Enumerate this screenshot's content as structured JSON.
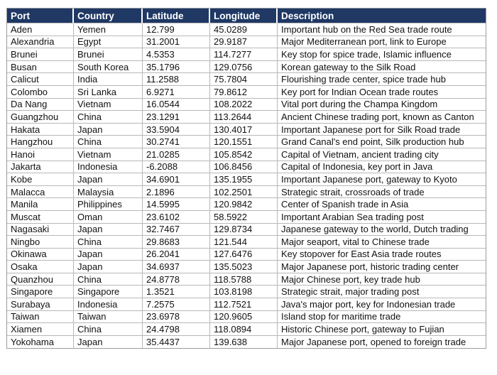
{
  "chart_data": {
    "type": "table",
    "columns": [
      "Port",
      "Country",
      "Latitude",
      "Longitude",
      "Description"
    ],
    "rows": [
      [
        "Aden",
        "Yemen",
        "12.799",
        "45.0289",
        "Important hub on the Red Sea trade route"
      ],
      [
        "Alexandria",
        "Egypt",
        "31.2001",
        "29.9187",
        "Major Mediterranean port, link to Europe"
      ],
      [
        "Brunei",
        "Brunei",
        "4.5353",
        "114.7277",
        "Key stop for spice trade, Islamic influence"
      ],
      [
        "Busan",
        "South Korea",
        "35.1796",
        "129.0756",
        "Korean gateway to the Silk Road"
      ],
      [
        "Calicut",
        "India",
        "11.2588",
        "75.7804",
        "Flourishing trade center, spice trade hub"
      ],
      [
        "Colombo",
        "Sri Lanka",
        "6.9271",
        "79.8612",
        "Key port for Indian Ocean trade routes"
      ],
      [
        "Da Nang",
        "Vietnam",
        "16.0544",
        "108.2022",
        "Vital port during the Champa Kingdom"
      ],
      [
        "Guangzhou",
        "China",
        "23.1291",
        "113.2644",
        "Ancient Chinese trading port, known as Canton"
      ],
      [
        "Hakata",
        "Japan",
        "33.5904",
        "130.4017",
        "Important Japanese port for Silk Road trade"
      ],
      [
        "Hangzhou",
        "China",
        "30.2741",
        "120.1551",
        "Grand Canal's end point, Silk production hub"
      ],
      [
        "Hanoi",
        "Vietnam",
        "21.0285",
        "105.8542",
        "Capital of Vietnam, ancient trading city"
      ],
      [
        "Jakarta",
        "Indonesia",
        "-6.2088",
        "106.8456",
        "Capital of Indonesia, key port in Java"
      ],
      [
        "Kobe",
        "Japan",
        "34.6901",
        "135.1955",
        "Important Japanese port, gateway to Kyoto"
      ],
      [
        "Malacca",
        "Malaysia",
        "2.1896",
        "102.2501",
        "Strategic strait, crossroads of trade"
      ],
      [
        "Manila",
        "Philippines",
        "14.5995",
        "120.9842",
        "Center of Spanish trade in Asia"
      ],
      [
        "Muscat",
        "Oman",
        "23.6102",
        "58.5922",
        "Important Arabian Sea trading post"
      ],
      [
        "Nagasaki",
        "Japan",
        "32.7467",
        "129.8734",
        "Japanese gateway to the world, Dutch trading"
      ],
      [
        "Ningbo",
        "China",
        "29.8683",
        "121.544",
        "Major seaport, vital to Chinese trade"
      ],
      [
        "Okinawa",
        "Japan",
        "26.2041",
        "127.6476",
        "Key stopover for East Asia trade routes"
      ],
      [
        "Osaka",
        "Japan",
        "34.6937",
        "135.5023",
        "Major Japanese port, historic trading center"
      ],
      [
        "Quanzhou",
        "China",
        "24.8778",
        "118.5788",
        "Major Chinese port, key trade hub"
      ],
      [
        "Singapore",
        "Singapore",
        "1.3521",
        "103.8198",
        "Strategic strait, major trading post"
      ],
      [
        "Surabaya",
        "Indonesia",
        "7.2575",
        "112.7521",
        "Java's major port, key for Indonesian trade"
      ],
      [
        "Taiwan",
        "Taiwan",
        "23.6978",
        "120.9605",
        "Island stop for maritime trade"
      ],
      [
        "Xiamen",
        "China",
        "24.4798",
        "118.0894",
        "Historic Chinese port, gateway to Fujian"
      ],
      [
        "Yokohama",
        "Japan",
        "35.4437",
        "139.638",
        "Major Japanese port, opened to foreign trade"
      ]
    ]
  },
  "colors": {
    "header_bg": "#1f3864",
    "header_text": "#ffffff",
    "grid_line": "#b8b8b8",
    "outer_border": "#9b9b9b",
    "row_bg": "#ffffff",
    "cell_text": "#111111"
  }
}
